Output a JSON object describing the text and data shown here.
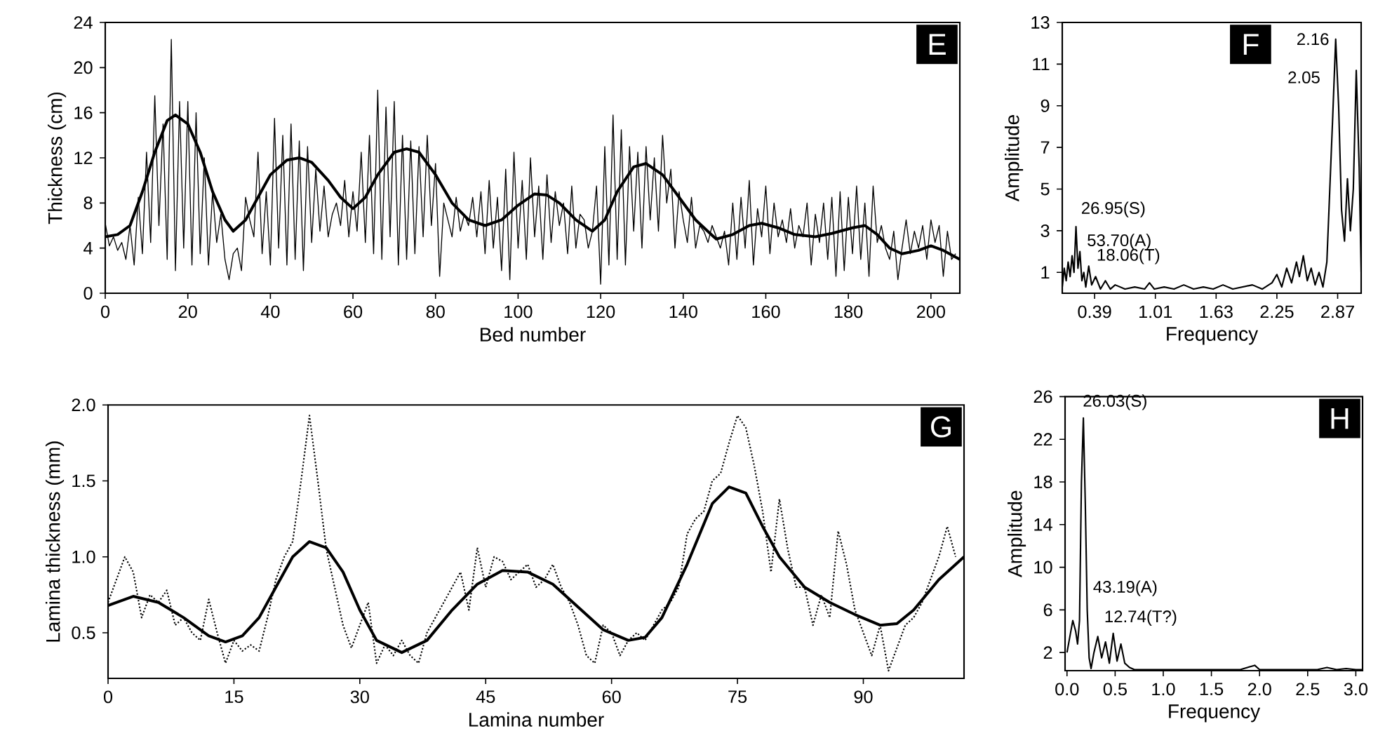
{
  "chart_data": [
    {
      "type": "line",
      "xlabel": "Bed number",
      "ylabel": "Thickness (cm)",
      "xlim": [
        0,
        207
      ],
      "ylim": [
        0,
        24
      ],
      "xticks": [
        0,
        20,
        40,
        60,
        80,
        100,
        120,
        140,
        160,
        180,
        200
      ],
      "yticks": [
        0,
        4,
        8,
        12,
        16,
        20,
        24
      ],
      "annotations": [
        "E"
      ],
      "series": [
        {
          "color": "#000000",
          "x": [
            0,
            1,
            2,
            3,
            4,
            5,
            6,
            7,
            8,
            9,
            10,
            11,
            12,
            13,
            14,
            15,
            16,
            17,
            18,
            19,
            20,
            21,
            22,
            23,
            24,
            25,
            26,
            27,
            28,
            29,
            30,
            31,
            32,
            33,
            34,
            35,
            36,
            37,
            38,
            39,
            40,
            41,
            42,
            43,
            44,
            45,
            46,
            47,
            48,
            49,
            50,
            51,
            52,
            53,
            54,
            55,
            56,
            57,
            58,
            59,
            60,
            61,
            62,
            63,
            64,
            65,
            66,
            67,
            68,
            69,
            70,
            71,
            72,
            73,
            74,
            75,
            76,
            77,
            78,
            79,
            80,
            81,
            82,
            83,
            84,
            85,
            86,
            87,
            88,
            89,
            90,
            91,
            92,
            93,
            94,
            95,
            96,
            97,
            98,
            99,
            100,
            101,
            102,
            103,
            104,
            105,
            106,
            107,
            108,
            109,
            110,
            111,
            112,
            113,
            114,
            115,
            116,
            117,
            118,
            119,
            120,
            121,
            122,
            123,
            124,
            125,
            126,
            127,
            128,
            129,
            130,
            131,
            132,
            133,
            134,
            135,
            136,
            137,
            138,
            139,
            140,
            141,
            142,
            143,
            144,
            145,
            146,
            147,
            148,
            149,
            150,
            151,
            152,
            153,
            154,
            155,
            156,
            157,
            158,
            159,
            160,
            161,
            162,
            163,
            164,
            165,
            166,
            167,
            168,
            169,
            170,
            171,
            172,
            173,
            174,
            175,
            176,
            177,
            178,
            179,
            180,
            181,
            182,
            183,
            184,
            185,
            186,
            187,
            188,
            189,
            190,
            191,
            192,
            193,
            194,
            195,
            196,
            197,
            198,
            199,
            200,
            201,
            202,
            203,
            204,
            205,
            206
          ],
          "values": [
            6.2,
            4.2,
            5.0,
            3.8,
            4.5,
            3.0,
            6.0,
            2.5,
            8.5,
            3.5,
            12.5,
            4.5,
            17.5,
            6.0,
            15.0,
            3.0,
            22.5,
            2.0,
            17.0,
            4.0,
            17.0,
            2.5,
            16.0,
            3.5,
            12.0,
            2.5,
            9.0,
            4.5,
            7.0,
            3.0,
            1.2,
            3.5,
            4.0,
            2.0,
            8.5,
            6.5,
            5.0,
            12.5,
            3.5,
            9.0,
            2.5,
            15.5,
            4.0,
            14.0,
            2.5,
            15.0,
            3.0,
            13.5,
            2.0,
            13.0,
            4.5,
            11.0,
            5.5,
            9.5,
            5.0,
            7.0,
            8.0,
            6.0,
            10.0,
            5.0,
            9.0,
            5.5,
            12.5,
            4.5,
            14.0,
            3.5,
            18.0,
            3.0,
            16.5,
            5.0,
            17.0,
            2.5,
            14.0,
            3.0,
            13.5,
            3.5,
            13.0,
            5.0,
            14.0,
            6.0,
            11.5,
            1.5,
            8.0,
            6.5,
            5.0,
            8.5,
            5.5,
            7.0,
            6.0,
            8.5,
            5.0,
            9.0,
            3.5,
            10.0,
            4.0,
            8.5,
            2.0,
            11.0,
            1.2,
            12.5,
            4.0,
            10.0,
            3.0,
            12.0,
            5.0,
            9.5,
            3.0,
            10.5,
            4.5,
            9.0,
            6.0,
            8.0,
            3.5,
            9.5,
            4.0,
            7.0,
            6.5,
            4.0,
            5.5,
            9.5,
            0.8,
            13.0,
            2.5,
            15.8,
            3.0,
            14.5,
            2.5,
            13.0,
            5.5,
            12.5,
            4.0,
            13.0,
            6.5,
            12.0,
            5.5,
            14.0,
            8.0,
            11.0,
            4.0,
            9.0,
            6.5,
            4.5,
            8.5,
            4.0,
            6.0,
            5.5,
            4.5,
            6.0,
            5.0,
            4.0,
            5.5,
            2.5,
            8.0,
            3.0,
            8.5,
            4.0,
            10.0,
            2.5,
            7.5,
            5.0,
            9.5,
            3.5,
            8.0,
            5.0,
            6.5,
            4.5,
            7.5,
            4.0,
            6.0,
            5.0,
            8.0,
            2.5,
            7.0,
            4.5,
            8.0,
            3.0,
            8.5,
            1.5,
            9.0,
            2.0,
            8.5,
            3.5,
            9.5,
            3.0,
            8.0,
            1.5,
            9.5,
            4.5,
            6.0,
            4.0,
            3.0,
            5.5,
            1.2,
            4.0,
            6.5,
            3.5,
            5.5,
            4.0,
            6.0,
            3.0,
            6.5,
            4.5,
            6.0,
            1.5,
            5.5,
            3.0,
            3.5
          ]
        },
        {
          "color": "#000000",
          "x": [
            0,
            3,
            6,
            9,
            12,
            15,
            17,
            20,
            23,
            26,
            29,
            31,
            34,
            37,
            40,
            44,
            47,
            50,
            54,
            57,
            60,
            63,
            66,
            70,
            73,
            76,
            80,
            84,
            88,
            92,
            96,
            100,
            104,
            107,
            110,
            114,
            118,
            121,
            124,
            128,
            131,
            135,
            139,
            143,
            148,
            152,
            156,
            159,
            163,
            167,
            172,
            176,
            181,
            184,
            187,
            190,
            193,
            197,
            200,
            203,
            207
          ],
          "values": [
            5,
            5.2,
            6,
            9,
            12.5,
            15.3,
            15.8,
            15,
            12.5,
            9,
            6.5,
            5.5,
            6.5,
            8.5,
            10.5,
            11.8,
            12,
            11.6,
            10,
            8.5,
            7.5,
            8.5,
            10.5,
            12.5,
            12.8,
            12.5,
            10.5,
            8,
            6.5,
            6,
            6.5,
            7.8,
            8.8,
            8.7,
            8,
            6.5,
            5.5,
            6.5,
            9,
            11.2,
            11.5,
            10.5,
            8.5,
            6.5,
            4.8,
            5.2,
            6,
            6.2,
            5.8,
            5.2,
            5,
            5.3,
            5.8,
            6,
            5.2,
            4,
            3.5,
            3.8,
            4.2,
            3.8,
            3
          ]
        }
      ]
    },
    {
      "type": "line",
      "xlabel": "Frequency",
      "ylabel": "Amplitude",
      "xlim": [
        0.06,
        3.11
      ],
      "ylim": [
        0,
        13
      ],
      "xticks": [
        0.39,
        1.01,
        1.63,
        2.25,
        2.87
      ],
      "yticks": [
        1,
        3,
        5,
        7,
        9,
        11,
        13
      ],
      "annotations": [
        "F",
        {
          "text": "26.95(S)",
          "x": 0.2,
          "y": 3.2
        },
        {
          "text": "53.70(A)",
          "x": 0.16,
          "y": 1.8
        },
        {
          "text": "18.06(T)",
          "x": 0.33,
          "y": 1.3
        },
        {
          "text": "2.16",
          "x": 2.85,
          "y": 12.2
        },
        {
          "text": "2.05",
          "x": 3.06,
          "y": 10.7
        }
      ],
      "series": [
        {
          "color": "#000000",
          "x": [
            0.06,
            0.08,
            0.1,
            0.12,
            0.14,
            0.16,
            0.18,
            0.2,
            0.22,
            0.24,
            0.26,
            0.28,
            0.3,
            0.33,
            0.36,
            0.4,
            0.45,
            0.5,
            0.55,
            0.6,
            0.7,
            0.8,
            0.9,
            0.95,
            1.0,
            1.1,
            1.2,
            1.3,
            1.4,
            1.5,
            1.6,
            1.7,
            1.8,
            1.9,
            2.0,
            2.1,
            2.2,
            2.25,
            2.3,
            2.35,
            2.4,
            2.45,
            2.48,
            2.52,
            2.56,
            2.6,
            2.64,
            2.68,
            2.72,
            2.76,
            2.79,
            2.82,
            2.85,
            2.88,
            2.91,
            2.94,
            2.97,
            3.0,
            3.03,
            3.06,
            3.09,
            3.11
          ],
          "values": [
            0.3,
            1.2,
            0.6,
            1.5,
            0.8,
            1.8,
            1.0,
            3.2,
            1.2,
            2.0,
            0.6,
            1.0,
            0.3,
            1.3,
            0.4,
            0.8,
            0.2,
            0.6,
            0.2,
            0.4,
            0.2,
            0.3,
            0.2,
            0.5,
            0.2,
            0.3,
            0.2,
            0.4,
            0.2,
            0.3,
            0.2,
            0.4,
            0.2,
            0.3,
            0.4,
            0.2,
            0.5,
            0.9,
            0.3,
            1.2,
            0.5,
            1.5,
            0.8,
            1.8,
            0.6,
            1.2,
            0.4,
            1.0,
            0.3,
            1.5,
            5.0,
            8.5,
            12.2,
            9.0,
            4.0,
            2.5,
            5.5,
            3.0,
            5.0,
            10.7,
            6.0,
            1.0
          ]
        }
      ]
    },
    {
      "type": "line",
      "xlabel": "Lamina number",
      "ylabel": "Lamina thickness (mm)",
      "xlim": [
        0,
        102
      ],
      "ylim": [
        0.2,
        2.0
      ],
      "xticks": [
        0,
        15,
        30,
        45,
        60,
        75,
        90
      ],
      "yticks": [
        0.5,
        {
          "value": 1,
          "label": "1.0"
        },
        1.5,
        {
          "value": 2,
          "label": "2.0"
        }
      ],
      "annotations": [
        "G"
      ],
      "series": [
        {
          "color": "#000000",
          "line_style": "dotted",
          "x": [
            0,
            1,
            2,
            3,
            4,
            5,
            6,
            7,
            8,
            9,
            10,
            11,
            12,
            13,
            14,
            15,
            16,
            17,
            18,
            19,
            20,
            21,
            22,
            23,
            24,
            25,
            26,
            27,
            28,
            29,
            30,
            31,
            32,
            33,
            34,
            35,
            36,
            37,
            38,
            39,
            40,
            41,
            42,
            43,
            44,
            45,
            46,
            47,
            48,
            49,
            50,
            51,
            52,
            53,
            54,
            55,
            56,
            57,
            58,
            59,
            60,
            61,
            62,
            63,
            64,
            65,
            66,
            67,
            68,
            69,
            70,
            71,
            72,
            73,
            74,
            75,
            76,
            77,
            78,
            79,
            80,
            81,
            82,
            83,
            84,
            85,
            86,
            87,
            88,
            89,
            90,
            91,
            92,
            93,
            94,
            95,
            96,
            97,
            98,
            99,
            100,
            101
          ],
          "values": [
            0.7,
            0.85,
            1.0,
            0.9,
            0.6,
            0.75,
            0.7,
            0.78,
            0.55,
            0.6,
            0.5,
            0.45,
            0.72,
            0.5,
            0.3,
            0.45,
            0.38,
            0.42,
            0.38,
            0.6,
            0.85,
            1.0,
            1.1,
            1.5,
            1.93,
            1.5,
            1.05,
            0.8,
            0.55,
            0.4,
            0.55,
            0.7,
            0.3,
            0.42,
            0.35,
            0.45,
            0.35,
            0.3,
            0.5,
            0.6,
            0.7,
            0.8,
            0.9,
            0.65,
            1.06,
            0.8,
            1.0,
            0.97,
            0.85,
            0.9,
            0.95,
            0.8,
            0.85,
            0.95,
            0.8,
            0.7,
            0.55,
            0.35,
            0.3,
            0.55,
            0.5,
            0.35,
            0.45,
            0.5,
            0.45,
            0.55,
            0.65,
            0.7,
            0.8,
            1.15,
            1.25,
            1.3,
            1.5,
            1.55,
            1.75,
            1.93,
            1.85,
            1.6,
            1.3,
            0.9,
            1.38,
            1.05,
            0.8,
            0.8,
            0.55,
            0.75,
            0.6,
            1.17,
            0.95,
            0.65,
            0.5,
            0.35,
            0.55,
            0.25,
            0.4,
            0.55,
            0.6,
            0.7,
            0.85,
            1.0,
            1.2,
            1.0
          ]
        },
        {
          "color": "#000000",
          "line_style": "solid",
          "x": [
            0,
            3,
            6,
            9,
            12,
            14,
            16,
            18,
            20,
            22,
            24,
            26,
            28,
            30,
            32,
            35,
            38,
            41,
            44,
            47,
            50,
            53,
            56,
            59,
            62,
            64,
            66,
            69,
            72,
            74,
            76,
            78,
            80,
            83,
            86,
            89,
            92,
            94,
            96,
            99,
            102
          ],
          "values": [
            0.68,
            0.74,
            0.7,
            0.6,
            0.48,
            0.44,
            0.48,
            0.6,
            0.8,
            1.0,
            1.1,
            1.06,
            0.9,
            0.65,
            0.45,
            0.37,
            0.45,
            0.65,
            0.82,
            0.91,
            0.9,
            0.82,
            0.67,
            0.52,
            0.45,
            0.47,
            0.6,
            0.95,
            1.35,
            1.46,
            1.42,
            1.2,
            1.0,
            0.8,
            0.7,
            0.62,
            0.55,
            0.56,
            0.65,
            0.85,
            1.0
          ]
        }
      ]
    },
    {
      "type": "line",
      "xlabel": "Frequency",
      "ylabel": "Amplitude",
      "xlim": [
        -0.02,
        3.07
      ],
      "ylim": [
        0.3,
        26
      ],
      "xticks": [
        {
          "value": 0,
          "label": "0.0"
        },
        0.5,
        {
          "value": 1,
          "label": "1.0"
        },
        1.5,
        {
          "value": 2,
          "label": "2.0"
        },
        2.5,
        {
          "value": 3,
          "label": "3.0"
        }
      ],
      "yticks": [
        2,
        6,
        10,
        14,
        18,
        22,
        26
      ],
      "annotations": [
        "H",
        {
          "text": "26.03(S)",
          "x": 0.17,
          "y": 24
        },
        {
          "text": "43.19(A)",
          "x": 0.13,
          "y": 5
        },
        {
          "text": "12.74(T?)",
          "x": 0.48,
          "y": 3.8
        }
      ],
      "series": [
        {
          "color": "#000000",
          "x": [
            0.0,
            0.03,
            0.06,
            0.09,
            0.11,
            0.13,
            0.15,
            0.17,
            0.19,
            0.21,
            0.23,
            0.25,
            0.28,
            0.32,
            0.36,
            0.4,
            0.44,
            0.48,
            0.52,
            0.56,
            0.6,
            0.65,
            0.7,
            0.8,
            0.9,
            1.0,
            1.2,
            1.4,
            1.6,
            1.8,
            1.95,
            2.0,
            2.2,
            2.4,
            2.6,
            2.7,
            2.8,
            2.9,
            3.0,
            3.07
          ],
          "values": [
            2.0,
            3.5,
            5.0,
            4.0,
            2.8,
            5.0,
            18,
            24.0,
            16,
            6,
            1.5,
            0.5,
            2.0,
            3.5,
            1.5,
            3.0,
            1.0,
            3.8,
            1.2,
            2.8,
            1.0,
            0.6,
            0.4,
            0.4,
            0.4,
            0.4,
            0.4,
            0.4,
            0.4,
            0.4,
            0.8,
            0.4,
            0.4,
            0.4,
            0.4,
            0.6,
            0.4,
            0.5,
            0.4,
            0.4
          ]
        }
      ]
    }
  ]
}
